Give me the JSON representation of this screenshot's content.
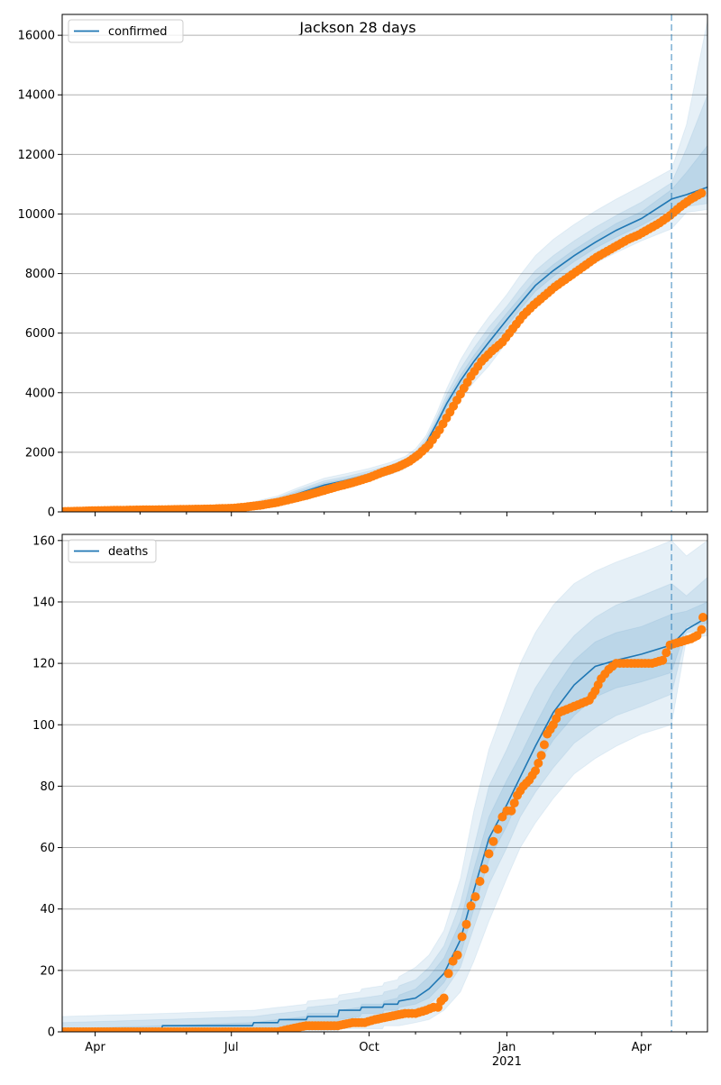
{
  "title": "Jackson 28 days",
  "colors": {
    "model": "#1f77b4",
    "observed": "#ff7f0e",
    "band": "#1f77b4",
    "grid": "#b0b0b0",
    "divider": "#1f77b4"
  },
  "x_axis": {
    "tick_labels": [
      "Apr",
      "Jul",
      "Oct",
      "Jan",
      "Apr"
    ],
    "year_label": "2021",
    "range": [
      "2020-03-10",
      "2021-05-15"
    ]
  },
  "forecast_start": "2021-04-21",
  "chart_data": [
    {
      "type": "line",
      "title": "Jackson 28 days",
      "legend": "confirmed",
      "legend_position": "top-left",
      "grid": true,
      "ylim": [
        0,
        16700
      ],
      "yticks": [
        0,
        2000,
        4000,
        6000,
        8000,
        10000,
        12000,
        14000,
        16000
      ],
      "model": {
        "x": [
          "2020-03-10",
          "2020-04-01",
          "2020-05-01",
          "2020-06-01",
          "2020-07-01",
          "2020-07-15",
          "2020-08-01",
          "2020-08-15",
          "2020-09-01",
          "2020-09-15",
          "2020-10-01",
          "2020-10-15",
          "2020-10-25",
          "2020-11-01",
          "2020-11-08",
          "2020-11-15",
          "2020-11-22",
          "2020-12-01",
          "2020-12-10",
          "2020-12-20",
          "2021-01-01",
          "2021-01-10",
          "2021-01-20",
          "2021-02-01",
          "2021-02-15",
          "2021-03-01",
          "2021-03-15",
          "2021-04-01",
          "2021-04-21",
          "2021-05-01",
          "2021-05-15"
        ],
        "y": [
          0,
          30,
          50,
          70,
          120,
          200,
          380,
          620,
          900,
          1050,
          1250,
          1450,
          1650,
          1900,
          2300,
          2950,
          3650,
          4400,
          5050,
          5700,
          6450,
          7000,
          7600,
          8100,
          8600,
          9050,
          9450,
          9850,
          10500,
          10650,
          10900
        ],
        "bands": [
          {
            "lower": [
              0,
              0,
              0,
              5,
              20,
              70,
              200,
              400,
              650,
              850,
              1050,
              1250,
              1450,
              1700,
              2100,
              2650,
              3200,
              3800,
              4350,
              4900,
              5700,
              6300,
              6900,
              7400,
              7900,
              8350,
              8700,
              9100,
              9500,
              10050,
              10150
            ],
            "upper": [
              0,
              60,
              100,
              140,
              220,
              330,
              540,
              820,
              1130,
              1280,
              1460,
              1660,
              1860,
              2120,
              2560,
              3300,
              4150,
              5100,
              5850,
              6550,
              7300,
              7950,
              8600,
              9150,
              9650,
              10100,
              10500,
              10950,
              11500,
              13000,
              16500
            ]
          },
          {
            "lower": [
              0,
              10,
              15,
              30,
              60,
              120,
              270,
              490,
              760,
              940,
              1140,
              1340,
              1540,
              1800,
              2200,
              2780,
              3400,
              4050,
              4650,
              5250,
              6000,
              6600,
              7200,
              7700,
              8200,
              8650,
              9000,
              9400,
              9850,
              10250,
              10350
            ],
            "upper": [
              0,
              50,
              85,
              110,
              180,
              280,
              480,
              750,
              1040,
              1180,
              1370,
              1570,
              1770,
              2020,
              2440,
              3150,
              3950,
              4800,
              5500,
              6200,
              6900,
              7500,
              8100,
              8600,
              9100,
              9550,
              9950,
              10400,
              11050,
              12200,
              14000
            ]
          },
          {
            "lower": [
              0,
              20,
              30,
              50,
              90,
              160,
              320,
              550,
              830,
              1000,
              1200,
              1400,
              1600,
              1850,
              2250,
              2860,
              3520,
              4220,
              4850,
              5480,
              6230,
              6800,
              7400,
              7900,
              8400,
              8850,
              9220,
              9620,
              10180,
              10450,
              10600
            ],
            "upper": [
              0,
              40,
              70,
              90,
              150,
              240,
              440,
              690,
              970,
              1100,
              1300,
              1500,
              1700,
              1950,
              2350,
              3040,
              3780,
              4580,
              5250,
              5920,
              6670,
              7200,
              7800,
              8300,
              8800,
              9250,
              9680,
              10080,
              10820,
              11400,
              12300
            ]
          }
        ]
      },
      "observed": {
        "x": [
          "2020-03-10",
          "2020-03-20",
          "2020-04-01",
          "2020-04-20",
          "2020-05-01",
          "2020-05-20",
          "2020-06-01",
          "2020-06-15",
          "2020-07-01",
          "2020-07-10",
          "2020-07-20",
          "2020-08-01",
          "2020-08-10",
          "2020-08-20",
          "2020-09-01",
          "2020-09-10",
          "2020-09-20",
          "2020-10-01",
          "2020-10-10",
          "2020-10-20",
          "2020-10-28",
          "2020-11-03",
          "2020-11-10",
          "2020-11-17",
          "2020-11-24",
          "2020-12-01",
          "2020-12-08",
          "2020-12-15",
          "2020-12-22",
          "2020-12-29",
          "2021-01-05",
          "2021-01-12",
          "2021-01-19",
          "2021-01-26",
          "2021-02-02",
          "2021-02-09",
          "2021-02-16",
          "2021-02-23",
          "2021-03-02",
          "2021-03-09",
          "2021-03-16",
          "2021-03-23",
          "2021-03-30",
          "2021-04-06",
          "2021-04-13",
          "2021-04-20",
          "2021-04-27",
          "2021-05-04",
          "2021-05-11"
        ],
        "y": [
          10,
          20,
          40,
          55,
          65,
          75,
          85,
          95,
          120,
          160,
          220,
          320,
          430,
          550,
          720,
          850,
          980,
          1150,
          1330,
          1500,
          1700,
          1920,
          2250,
          2750,
          3350,
          3950,
          4550,
          5050,
          5400,
          5700,
          6150,
          6600,
          6950,
          7250,
          7550,
          7800,
          8050,
          8300,
          8550,
          8750,
          8950,
          9150,
          9300,
          9500,
          9700,
          9950,
          10250,
          10500,
          10700
        ]
      }
    },
    {
      "type": "line",
      "title": "",
      "legend": "deaths",
      "legend_position": "top-left",
      "grid": true,
      "ylim": [
        0,
        162
      ],
      "yticks": [
        0,
        20,
        40,
        60,
        80,
        100,
        120,
        140,
        160
      ],
      "model": {
        "x": [
          "2020-03-10",
          "2020-05-15",
          "2020-05-16",
          "2020-07-15",
          "2020-07-16",
          "2020-08-01",
          "2020-08-02",
          "2020-08-20",
          "2020-08-21",
          "2020-09-10",
          "2020-09-11",
          "2020-09-25",
          "2020-09-26",
          "2020-10-10",
          "2020-10-11",
          "2020-10-20",
          "2020-10-21",
          "2020-11-01",
          "2020-11-10",
          "2020-11-20",
          "2020-12-01",
          "2020-12-10",
          "2020-12-20",
          "2021-01-01",
          "2021-01-10",
          "2021-01-20",
          "2021-02-01",
          "2021-02-15",
          "2021-03-01",
          "2021-03-15",
          "2021-04-01",
          "2021-04-21",
          "2021-05-01",
          "2021-05-15"
        ],
        "y": [
          0,
          0,
          2,
          2,
          3,
          3,
          4,
          4,
          5,
          5,
          7,
          7,
          8,
          8,
          9,
          9,
          10,
          11,
          14,
          19,
          30,
          46,
          63,
          74,
          83,
          93,
          104,
          113,
          119,
          121,
          123,
          126,
          131,
          135
        ],
        "bands": [
          {
            "lower": [
              0,
              0,
              0,
              0,
              0,
              0,
              0,
              0,
              0,
              0,
              1,
              1,
              1,
              1,
              2,
              2,
              2,
              3,
              4,
              7,
              13,
              23,
              36,
              50,
              60,
              68,
              76,
              84,
              89,
              93,
              97,
              100,
              128,
              129
            ],
            "upper": [
              5,
              6,
              6,
              7,
              7,
              8,
              8,
              9,
              10,
              11,
              12,
              13,
              14,
              15,
              16,
              17,
              18,
              21,
              25,
              33,
              50,
              72,
              92,
              108,
              120,
              130,
              139,
              146,
              150,
              153,
              156,
              160,
              155,
              160
            ]
          },
          {
            "lower": [
              0,
              0,
              0,
              0,
              0,
              0,
              1,
              1,
              1,
              2,
              3,
              3,
              4,
              4,
              5,
              5,
              6,
              7,
              9,
              13,
              21,
              34,
              48,
              60,
              70,
              78,
              86,
              94,
              99,
              103,
              106,
              110,
              130,
              131
            ],
            "upper": [
              3,
              4,
              4,
              5,
              5,
              6,
              6,
              7,
              8,
              9,
              10,
              11,
              11,
              12,
              13,
              14,
              15,
              17,
              21,
              28,
              42,
              60,
              80,
              92,
              102,
              112,
              121,
              129,
              135,
              139,
              142,
              146,
              142,
              148
            ]
          },
          {
            "lower": [
              0,
              0,
              1,
              1,
              1,
              1,
              2,
              2,
              3,
              3,
              4,
              5,
              6,
              6,
              7,
              7,
              8,
              9,
              11,
              16,
              25,
              40,
              56,
              67,
              77,
              86,
              95,
              103,
              109,
              112,
              114,
              117,
              132,
              133
            ],
            "upper": [
              1,
              2,
              2,
              3,
              3,
              4,
              4,
              5,
              6,
              6,
              7,
              8,
              9,
              9,
              10,
              11,
              12,
              14,
              18,
              24,
              36,
              53,
              70,
              82,
              90,
              100,
              111,
              121,
              127,
              130,
              132,
              136,
              137,
              140
            ]
          }
        ]
      },
      "observed": {
        "x": [
          "2020-03-10",
          "2020-04-01",
          "2020-05-01",
          "2020-06-01",
          "2020-07-01",
          "2020-07-20",
          "2020-08-01",
          "2020-08-10",
          "2020-08-20",
          "2020-09-01",
          "2020-09-10",
          "2020-09-20",
          "2020-09-28",
          "2020-10-05",
          "2020-10-15",
          "2020-10-25",
          "2020-11-01",
          "2020-11-08",
          "2020-11-13",
          "2020-11-16",
          "2020-11-18",
          "2020-11-20",
          "2020-11-23",
          "2020-11-26",
          "2020-11-29",
          "2020-12-02",
          "2020-12-05",
          "2020-12-08",
          "2020-12-11",
          "2020-12-14",
          "2020-12-17",
          "2020-12-20",
          "2020-12-23",
          "2020-12-26",
          "2020-12-29",
          "2021-01-01",
          "2021-01-04",
          "2021-01-08",
          "2021-01-12",
          "2021-01-16",
          "2021-01-20",
          "2021-01-24",
          "2021-01-28",
          "2021-02-01",
          "2021-02-05",
          "2021-02-10",
          "2021-02-15",
          "2021-02-20",
          "2021-02-25",
          "2021-03-01",
          "2021-03-05",
          "2021-03-10",
          "2021-03-15",
          "2021-03-20",
          "2021-03-25",
          "2021-04-01",
          "2021-04-08",
          "2021-04-15",
          "2021-04-20",
          "2021-04-27",
          "2021-05-04",
          "2021-05-08",
          "2021-05-11",
          "2021-05-12"
        ],
        "y": [
          0,
          0,
          0,
          0,
          0,
          0,
          0,
          1,
          2,
          2,
          2,
          3,
          3,
          4,
          5,
          6,
          6,
          7,
          8,
          8,
          10,
          11,
          19,
          23,
          25,
          31,
          35,
          41,
          44,
          49,
          53,
          58,
          62,
          66,
          70,
          72,
          72,
          77,
          80,
          82,
          85,
          90,
          97,
          100,
          104,
          105,
          106,
          107,
          108,
          111,
          115,
          118,
          120,
          120,
          120,
          120,
          120,
          121,
          126,
          127,
          128,
          129,
          131,
          135
        ]
      }
    }
  ]
}
